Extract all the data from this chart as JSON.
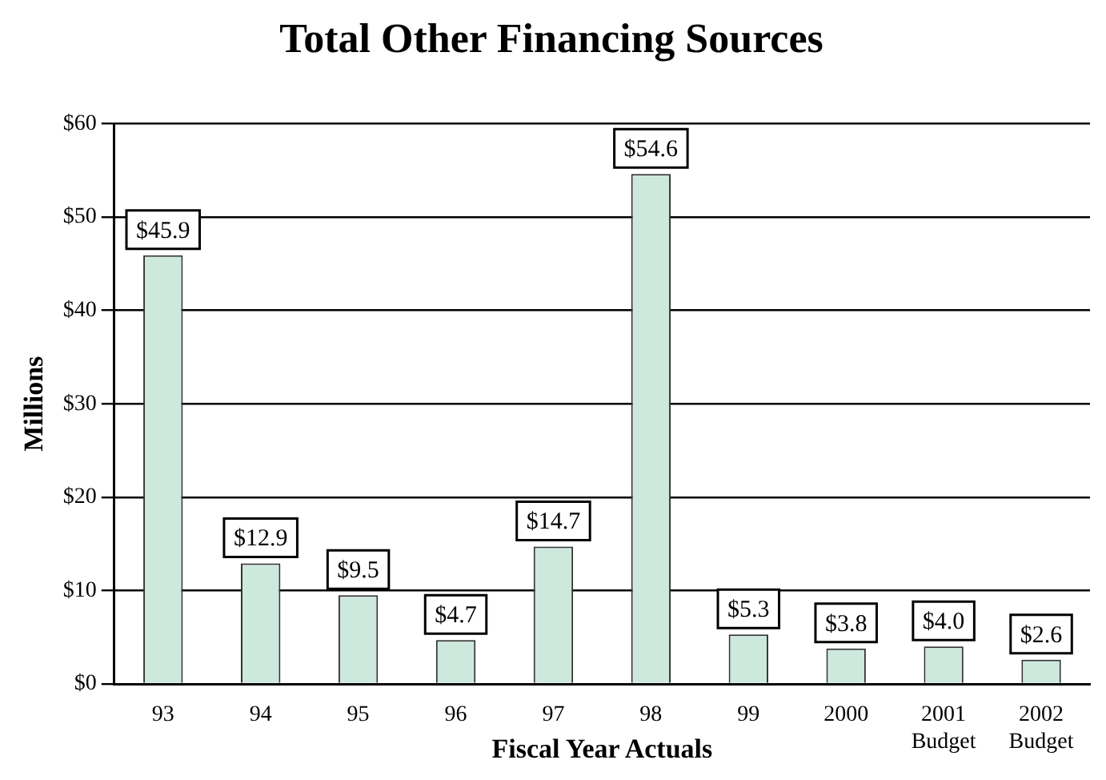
{
  "chart_data": {
    "type": "bar",
    "title": "Total Other Financing Sources",
    "xlabel": "Fiscal Year Actuals",
    "ylabel": "Millions",
    "categories": [
      "93",
      "94",
      "95",
      "96",
      "97",
      "98",
      "99",
      "2000",
      "2001 Budget",
      "2002 Budget"
    ],
    "values": [
      45.9,
      12.9,
      9.5,
      4.7,
      14.7,
      54.6,
      5.3,
      3.8,
      4.0,
      2.6
    ],
    "value_labels": [
      "$45.9",
      "$12.9",
      "$9.5",
      "$4.7",
      "$14.7",
      "$54.6",
      "$5.3",
      "$3.8",
      "$4.0",
      "$2.6"
    ],
    "color": "#cde8dc",
    "ylim": [
      0,
      60
    ],
    "yticks": [
      {
        "value": 0,
        "label": "$0"
      },
      {
        "value": 10,
        "label": "$10"
      },
      {
        "value": 20,
        "label": "$20"
      },
      {
        "value": 30,
        "label": "$30"
      },
      {
        "value": 40,
        "label": "$40"
      },
      {
        "value": 50,
        "label": "$50"
      },
      {
        "value": 60,
        "label": "$60"
      }
    ],
    "grid": "y",
    "legend": false
  }
}
